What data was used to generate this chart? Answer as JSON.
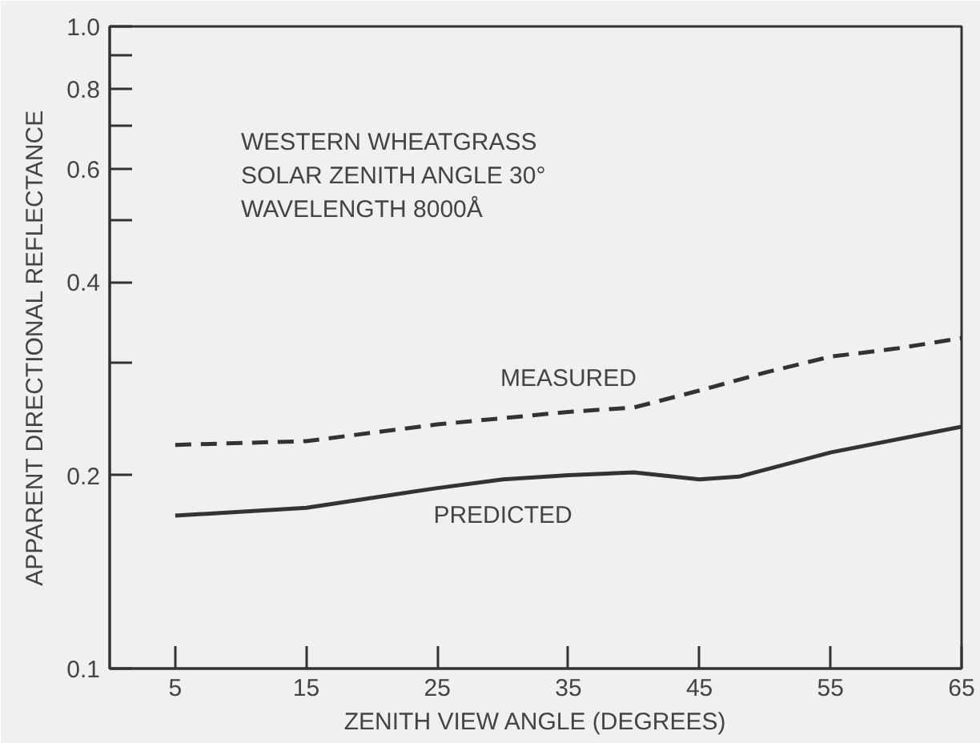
{
  "chart_data": {
    "type": "line",
    "xlabel": "ZENITH VIEW ANGLE (DEGREES)",
    "ylabel": "APPARENT DIRECTIONAL REFLECTANCE",
    "log": "y",
    "xlim": [
      0,
      65
    ],
    "ylim": [
      0.1,
      1.0
    ],
    "xticks": [
      5,
      15,
      25,
      35,
      45,
      55,
      65
    ],
    "yticks": [
      0.1,
      0.2,
      {
        "value": 0.3,
        "label": null
      },
      0.4,
      {
        "value": 0.5,
        "label": null
      },
      0.6,
      {
        "value": 0.7,
        "label": null
      },
      0.8,
      {
        "value": 0.9,
        "label": null
      },
      {
        "value": 1.0,
        "label": "1.0"
      }
    ],
    "grid": false,
    "legend": false,
    "series": [
      {
        "name": "MEASURED",
        "color": "#333333",
        "line_style": "dashed",
        "x": [
          5,
          15,
          25,
          35,
          40,
          45,
          50,
          55,
          60,
          65
        ],
        "values": [
          0.223,
          0.226,
          0.24,
          0.251,
          0.255,
          0.271,
          0.289,
          0.306,
          0.315,
          0.327
        ]
      },
      {
        "name": "PREDICTED",
        "color": "#333333",
        "line_style": "solid",
        "x": [
          5,
          15,
          25,
          30,
          35,
          40,
          45,
          48,
          55,
          65
        ],
        "values": [
          0.173,
          0.178,
          0.191,
          0.197,
          0.2,
          0.202,
          0.197,
          0.199,
          0.217,
          0.238
        ]
      }
    ],
    "annotations": [
      "WESTERN WHEATGRASS",
      "SOLAR ZENITH ANGLE 30°",
      "WAVELENGTH 8000Å"
    ]
  }
}
